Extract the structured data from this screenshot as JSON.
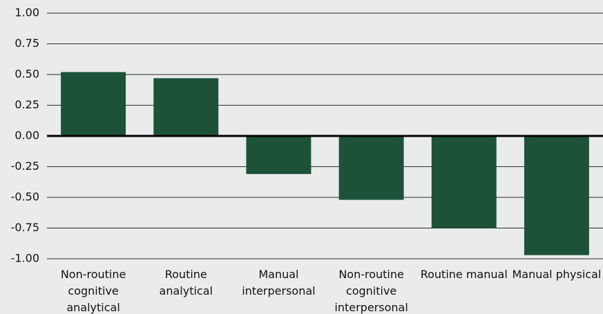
{
  "chart_data": {
    "type": "bar",
    "categories": [
      "Non-routine cognitive analytical",
      "Routine analytical",
      "Manual interpersonal",
      "Non-routine cognitive interpersonal",
      "Routine manual",
      "Manual physical"
    ],
    "values": [
      0.52,
      0.47,
      -0.31,
      -0.52,
      -0.75,
      -0.97
    ],
    "color": "#1d5239",
    "ylim": [
      -1,
      1
    ],
    "yticks": [
      {
        "value": 1,
        "label": "1.00"
      },
      {
        "value": 0.75,
        "label": "0.75"
      },
      {
        "value": 0.5,
        "label": "0.50"
      },
      {
        "value": 0.25,
        "label": "0.25"
      },
      {
        "value": 0,
        "label": "0.00"
      },
      {
        "value": -0.25,
        "label": "-0.25"
      },
      {
        "value": -0.5,
        "label": "-0.50"
      },
      {
        "value": -0.75,
        "label": "-0.75"
      },
      {
        "value": -1,
        "label": "-1.00"
      }
    ],
    "grid": true
  }
}
